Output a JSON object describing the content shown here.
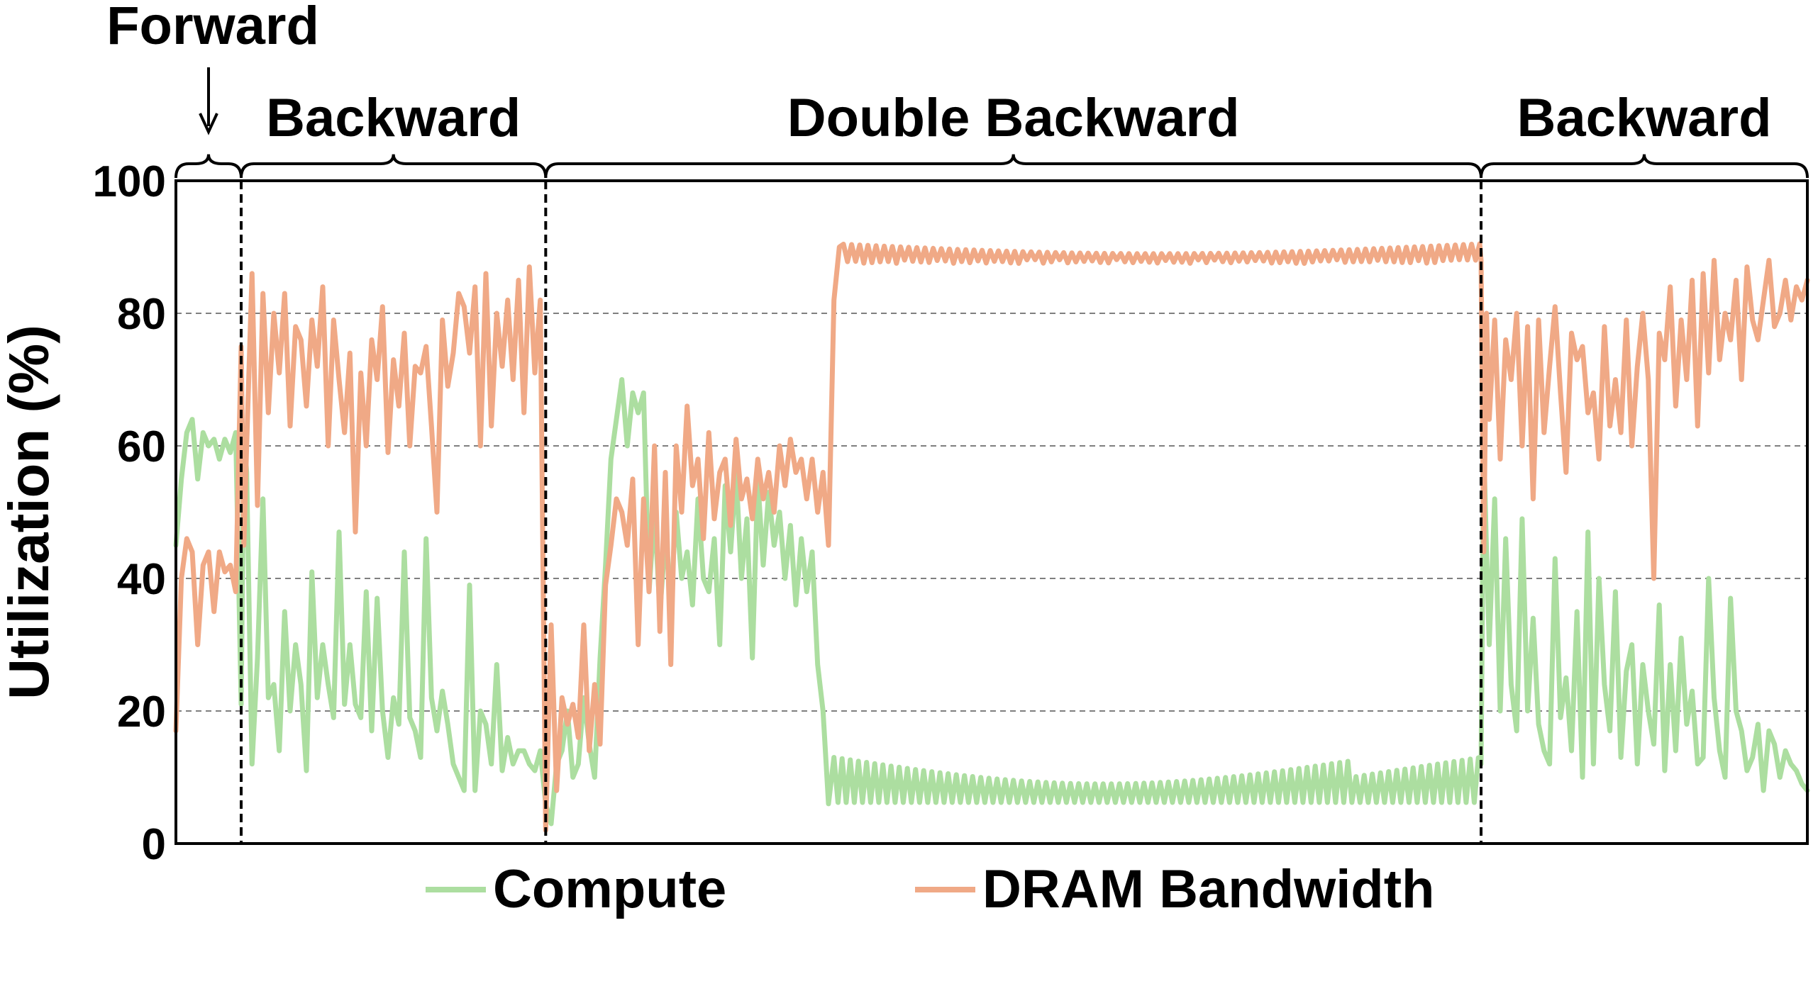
{
  "chart_data": {
    "type": "line",
    "title": "",
    "xlabel": "",
    "ylabel": "Utilization (%)",
    "ylim": [
      0,
      100
    ],
    "yticks": [
      0,
      20,
      40,
      60,
      80,
      100
    ],
    "grid": "horizontal dashed at 20, 40, 60, 80",
    "legend_placement": "bottom",
    "phases": [
      {
        "label": "Forward",
        "start": 0,
        "end": 12,
        "label_placement": "above with arrow"
      },
      {
        "label": "Backward",
        "start": 12,
        "end": 68
      },
      {
        "label": "Double Backward",
        "start": 68,
        "end": 240
      },
      {
        "label": "Backward",
        "start": 240,
        "end": 300
      }
    ],
    "x_range": [
      0,
      300
    ],
    "series": [
      {
        "name": "Compute",
        "color": "#acdea0",
        "points": [
          [
            0,
            45
          ],
          [
            1,
            55
          ],
          [
            2,
            62
          ],
          [
            3,
            64
          ],
          [
            4,
            55
          ],
          [
            5,
            62
          ],
          [
            6,
            60
          ],
          [
            7,
            61
          ],
          [
            8,
            58
          ],
          [
            9,
            61
          ],
          [
            10,
            59
          ],
          [
            11,
            62
          ],
          [
            12,
            21
          ],
          [
            12.5,
            62
          ],
          [
            13,
            56
          ],
          [
            14,
            12
          ],
          [
            15,
            28
          ],
          [
            16,
            52
          ],
          [
            17,
            22
          ],
          [
            18,
            24
          ],
          [
            19,
            14
          ],
          [
            20,
            35
          ],
          [
            21,
            20
          ],
          [
            22,
            30
          ],
          [
            23,
            24
          ],
          [
            24,
            11
          ],
          [
            25,
            41
          ],
          [
            26,
            22
          ],
          [
            27,
            30
          ],
          [
            28,
            24
          ],
          [
            29,
            19
          ],
          [
            30,
            47
          ],
          [
            31,
            21
          ],
          [
            32,
            30
          ],
          [
            33,
            21
          ],
          [
            34,
            19
          ],
          [
            35,
            38
          ],
          [
            36,
            17
          ],
          [
            37,
            37
          ],
          [
            38,
            20
          ],
          [
            39,
            13
          ],
          [
            40,
            22
          ],
          [
            41,
            18
          ],
          [
            42,
            44
          ],
          [
            43,
            19
          ],
          [
            44,
            17
          ],
          [
            45,
            13
          ],
          [
            46,
            46
          ],
          [
            47,
            22
          ],
          [
            48,
            17
          ],
          [
            49,
            23
          ],
          [
            50,
            18
          ],
          [
            51,
            12
          ],
          [
            52,
            10
          ],
          [
            53,
            8
          ],
          [
            54,
            39
          ],
          [
            55,
            8
          ],
          [
            56,
            20
          ],
          [
            57,
            18
          ],
          [
            58,
            12
          ],
          [
            59,
            27
          ],
          [
            60,
            11
          ],
          [
            61,
            16
          ],
          [
            62,
            12
          ],
          [
            63,
            14
          ],
          [
            64,
            14
          ],
          [
            65,
            12
          ],
          [
            66,
            11
          ],
          [
            67,
            14
          ],
          [
            68,
            6
          ],
          [
            69,
            3
          ],
          [
            70,
            12
          ],
          [
            71,
            14
          ],
          [
            72,
            20
          ],
          [
            73,
            10
          ],
          [
            74,
            12
          ],
          [
            75,
            22
          ],
          [
            76,
            15
          ],
          [
            77,
            10
          ],
          [
            78,
            28
          ],
          [
            79,
            42
          ],
          [
            80,
            58
          ],
          [
            81,
            64
          ],
          [
            82,
            70
          ],
          [
            83,
            60
          ],
          [
            84,
            68
          ],
          [
            85,
            65
          ],
          [
            86,
            68
          ],
          [
            87,
            38
          ],
          [
            88,
            50
          ],
          [
            89,
            35
          ],
          [
            90,
            46
          ],
          [
            91,
            37
          ],
          [
            92,
            50
          ],
          [
            93,
            40
          ],
          [
            94,
            44
          ],
          [
            95,
            36
          ],
          [
            96,
            52
          ],
          [
            97,
            40
          ],
          [
            98,
            38
          ],
          [
            99,
            46
          ],
          [
            100,
            30
          ],
          [
            101,
            54
          ],
          [
            102,
            44
          ],
          [
            103,
            56
          ],
          [
            104,
            40
          ],
          [
            105,
            49
          ],
          [
            106,
            28
          ],
          [
            107,
            55
          ],
          [
            108,
            42
          ],
          [
            109,
            53
          ],
          [
            110,
            45
          ],
          [
            111,
            50
          ],
          [
            112,
            40
          ],
          [
            113,
            48
          ],
          [
            114,
            36
          ],
          [
            115,
            46
          ],
          [
            116,
            38
          ],
          [
            117,
            44
          ],
          [
            118,
            27
          ],
          [
            119,
            20
          ],
          [
            120,
            6
          ]
        ]
      },
      {
        "name": "DRAM Bandwidth",
        "color": "#f0a986",
        "points": [
          [
            0,
            17
          ],
          [
            1,
            40
          ],
          [
            2,
            46
          ],
          [
            3,
            44
          ],
          [
            4,
            30
          ],
          [
            5,
            42
          ],
          [
            6,
            44
          ],
          [
            7,
            35
          ],
          [
            8,
            44
          ],
          [
            9,
            41
          ],
          [
            10,
            42
          ],
          [
            11,
            38
          ],
          [
            12,
            75
          ],
          [
            12.5,
            45
          ],
          [
            13,
            60
          ],
          [
            14,
            86
          ],
          [
            15,
            51
          ],
          [
            16,
            83
          ],
          [
            17,
            65
          ],
          [
            18,
            80
          ],
          [
            19,
            71
          ],
          [
            20,
            83
          ],
          [
            21,
            63
          ],
          [
            22,
            78
          ],
          [
            23,
            76
          ],
          [
            24,
            66
          ],
          [
            25,
            79
          ],
          [
            26,
            72
          ],
          [
            27,
            84
          ],
          [
            28,
            60
          ],
          [
            29,
            79
          ],
          [
            30,
            70
          ],
          [
            31,
            62
          ],
          [
            32,
            74
          ],
          [
            33,
            47
          ],
          [
            34,
            71
          ],
          [
            35,
            60
          ],
          [
            36,
            76
          ],
          [
            37,
            70
          ],
          [
            38,
            81
          ],
          [
            39,
            59
          ],
          [
            40,
            73
          ],
          [
            41,
            66
          ],
          [
            42,
            77
          ],
          [
            43,
            60
          ],
          [
            44,
            72
          ],
          [
            45,
            71
          ],
          [
            46,
            75
          ],
          [
            47,
            63
          ],
          [
            48,
            50
          ],
          [
            49,
            79
          ],
          [
            50,
            69
          ],
          [
            51,
            74
          ],
          [
            52,
            83
          ],
          [
            53,
            81
          ],
          [
            54,
            74
          ],
          [
            55,
            84
          ],
          [
            56,
            60
          ],
          [
            57,
            86
          ],
          [
            58,
            63
          ],
          [
            59,
            80
          ],
          [
            60,
            72
          ],
          [
            61,
            82
          ],
          [
            62,
            70
          ],
          [
            63,
            85
          ],
          [
            64,
            65
          ],
          [
            65,
            87
          ],
          [
            66,
            71
          ],
          [
            67,
            82
          ],
          [
            68,
            2
          ],
          [
            69,
            33
          ],
          [
            70,
            8
          ],
          [
            71,
            22
          ],
          [
            72,
            18
          ],
          [
            73,
            21
          ],
          [
            74,
            16
          ],
          [
            75,
            33
          ],
          [
            76,
            14
          ],
          [
            77,
            24
          ],
          [
            78,
            15
          ],
          [
            79,
            39
          ],
          [
            80,
            45
          ],
          [
            81,
            52
          ],
          [
            82,
            50
          ],
          [
            83,
            45
          ],
          [
            84,
            55
          ],
          [
            85,
            30
          ],
          [
            86,
            52
          ],
          [
            87,
            38
          ],
          [
            88,
            60
          ],
          [
            89,
            32
          ],
          [
            90,
            56
          ],
          [
            91,
            27
          ],
          [
            92,
            60
          ],
          [
            93,
            50
          ],
          [
            94,
            66
          ],
          [
            95,
            54
          ],
          [
            96,
            58
          ],
          [
            97,
            46
          ],
          [
            98,
            62
          ],
          [
            99,
            49
          ],
          [
            100,
            56
          ],
          [
            101,
            58
          ],
          [
            102,
            48
          ],
          [
            103,
            61
          ],
          [
            104,
            52
          ],
          [
            105,
            55
          ],
          [
            106,
            49
          ],
          [
            107,
            58
          ],
          [
            108,
            52
          ],
          [
            109,
            56
          ],
          [
            110,
            50
          ],
          [
            111,
            60
          ],
          [
            112,
            54
          ],
          [
            113,
            61
          ],
          [
            114,
            56
          ],
          [
            115,
            58
          ],
          [
            116,
            52
          ],
          [
            117,
            58
          ],
          [
            118,
            50
          ],
          [
            119,
            56
          ],
          [
            120,
            45
          ],
          [
            121,
            82
          ],
          [
            122,
            90
          ]
        ]
      }
    ]
  }
}
